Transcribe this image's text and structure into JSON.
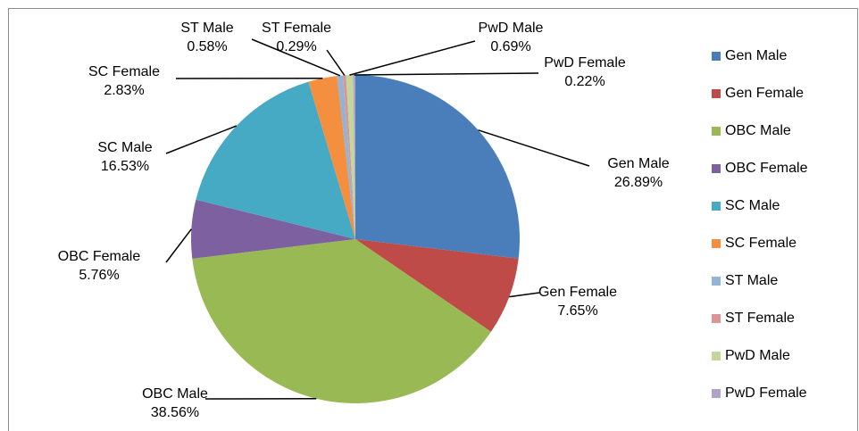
{
  "chart_data": {
    "type": "pie",
    "categories": [
      "Gen Male",
      "Gen Female",
      "OBC Male",
      "OBC Female",
      "SC Male",
      "SC Female",
      "ST Male",
      "ST Female",
      "PwD Male",
      "PwD Female"
    ],
    "values": [
      26.89,
      7.65,
      38.56,
      5.76,
      16.53,
      2.83,
      0.58,
      0.29,
      0.69,
      0.22
    ],
    "value_labels": [
      "26.89%",
      "7.65%",
      "38.56%",
      "5.76%",
      "16.53%",
      "2.83%",
      "0.58%",
      "0.29%",
      "0.69%",
      "0.22%"
    ],
    "colors": [
      "#4a7ebb",
      "#be4b48",
      "#98b954",
      "#7d60a0",
      "#46aac5",
      "#f38f3e",
      "#95b3d7",
      "#d99694",
      "#c3d69b",
      "#b3a2c7"
    ],
    "legend": "right"
  }
}
